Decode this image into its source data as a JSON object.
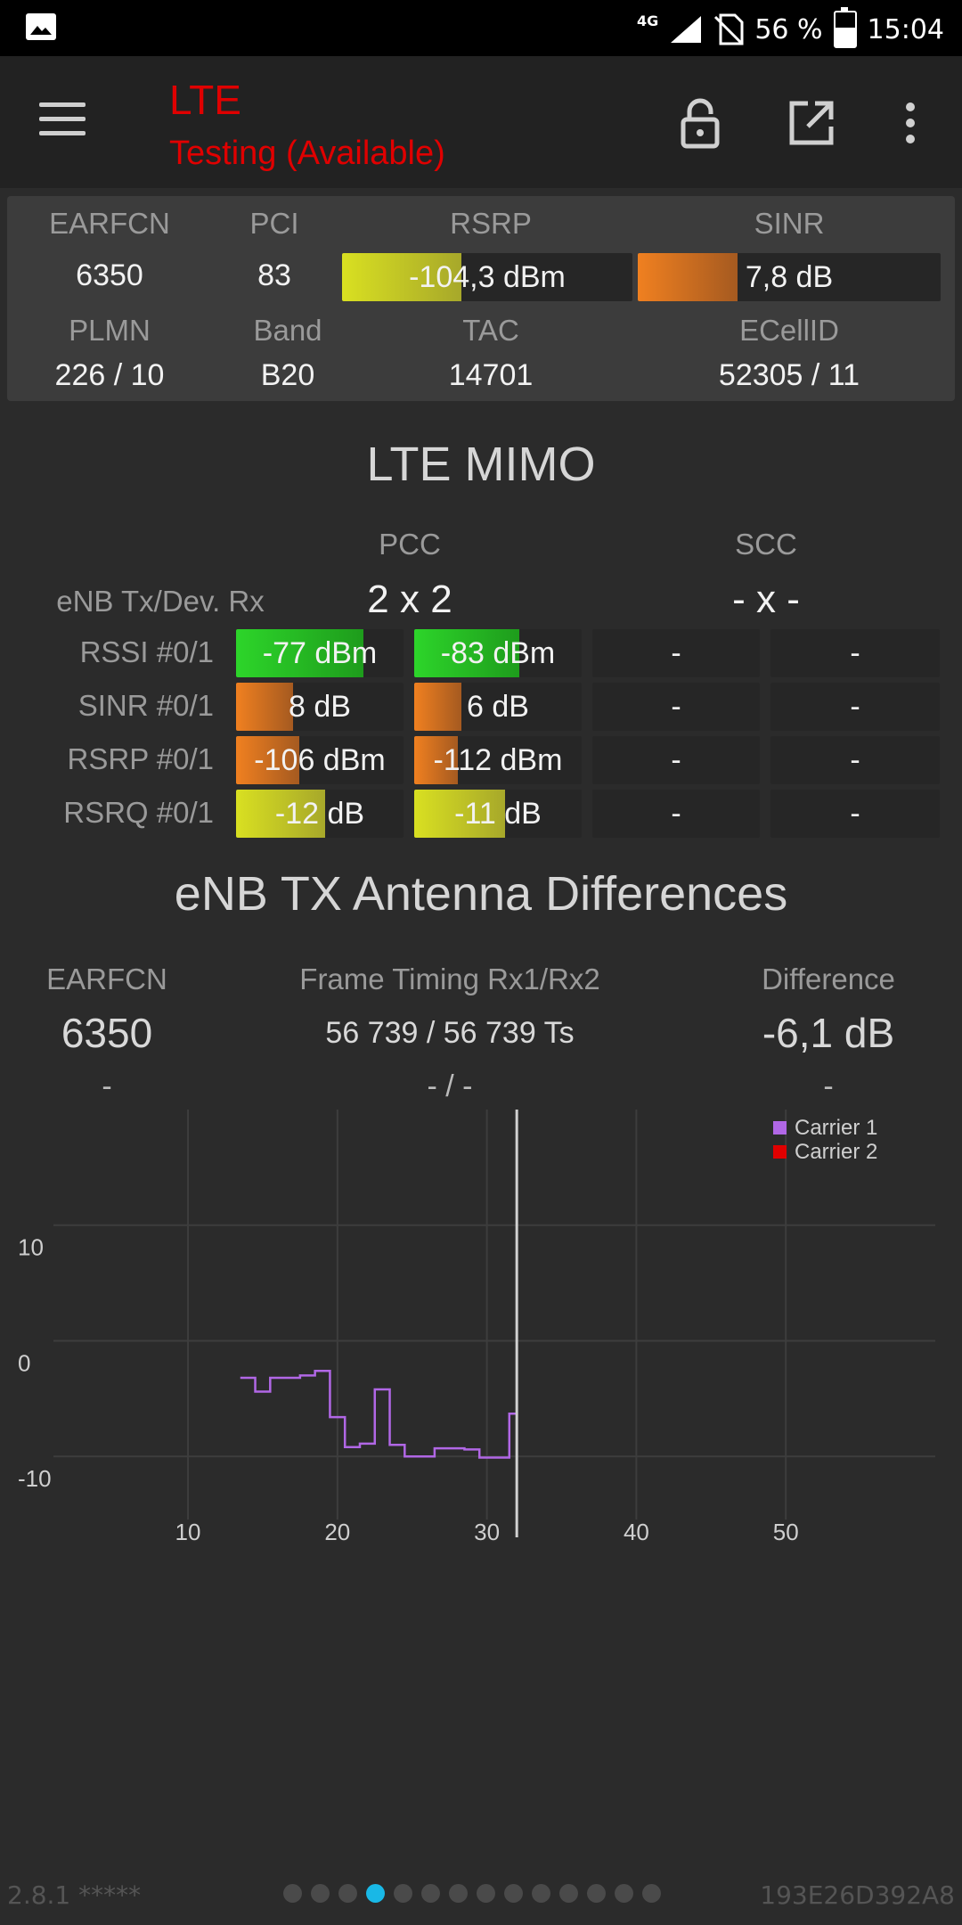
{
  "status_bar": {
    "network": "4G",
    "battery": "56 %",
    "time": "15:04",
    "battery_level": 0.56,
    "icons": [
      "image-icon",
      "signal-icon",
      "no-sim-icon",
      "battery-icon"
    ]
  },
  "app_bar": {
    "title": "LTE",
    "subtitle": "Testing (Available)",
    "icons": [
      "menu-icon",
      "lock-icon",
      "open-external-icon",
      "more-vert-icon"
    ],
    "title_color": "#e00000"
  },
  "info": {
    "labels": {
      "earfcn": "EARFCN",
      "pci": "PCI",
      "rsrp": "RSRP",
      "sinr": "SINR",
      "plmn": "PLMN",
      "band": "Band",
      "tac": "TAC",
      "ecellid": "ECellID"
    },
    "earfcn": "6350",
    "pci": "83",
    "rsrp": {
      "text": "-104,3 dBm",
      "level": 0.41
    },
    "sinr": {
      "text": "7,8 dB",
      "level": 0.33
    },
    "plmn": "226 / 10",
    "band": "B20",
    "tac": "14701",
    "ecellid": "52305 / 11"
  },
  "mimo": {
    "title": "LTE MIMO",
    "pcc_label": "PCC",
    "scc_label": "SCC",
    "enb_label": "eNB Tx/Dev. Rx",
    "pcc_config": "2 x 2",
    "scc_config": "- x -",
    "rows": [
      {
        "label": "RSSI #0/1",
        "cells": [
          {
            "text": "-77 dBm",
            "level": 0.76,
            "color": "green"
          },
          {
            "text": "-83 dBm",
            "level": 0.63,
            "color": "green"
          },
          {
            "text": "-"
          },
          {
            "text": "-"
          }
        ]
      },
      {
        "label": "SINR #0/1",
        "cells": [
          {
            "text": "8 dB",
            "level": 0.34,
            "color": "orange"
          },
          {
            "text": "6 dB",
            "level": 0.28,
            "color": "orange"
          },
          {
            "text": "-"
          },
          {
            "text": "-"
          }
        ]
      },
      {
        "label": "RSRP #0/1",
        "cells": [
          {
            "text": "-106 dBm",
            "level": 0.38,
            "color": "orange"
          },
          {
            "text": "-112 dBm",
            "level": 0.26,
            "color": "orange"
          },
          {
            "text": "-"
          },
          {
            "text": "-"
          }
        ]
      },
      {
        "label": "RSRQ #0/1",
        "cells": [
          {
            "text": "-12 dB",
            "level": 0.53,
            "color": "yellow"
          },
          {
            "text": "-11 dB",
            "level": 0.54,
            "color": "yellow"
          },
          {
            "text": "-"
          },
          {
            "text": "-"
          }
        ]
      }
    ]
  },
  "antenna": {
    "title": "eNB TX Antenna Differences",
    "col_earfcn": "EARFCN",
    "col_timing": "Frame Timing Rx1/Rx2",
    "col_diff": "Difference",
    "earfcn": "6350",
    "timing": "56 739 / 56 739 Ts",
    "diff": "-6,1 dB",
    "earfcn2": "-",
    "timing2": "- / -",
    "diff2": "-"
  },
  "chart_data": {
    "type": "line",
    "title": "",
    "xlabel": "",
    "ylabel": "",
    "xlim": [
      1,
      60
    ],
    "ylim": [
      -17,
      20
    ],
    "xticks": [
      10,
      20,
      30,
      40,
      50
    ],
    "yticks": [
      10,
      0,
      -10
    ],
    "grid": true,
    "legend_position": "top-right",
    "cursor_x": 32,
    "series": [
      {
        "name": "Carrier 1",
        "color": "#b167e6",
        "step": true,
        "x": [
          13.5,
          14.5,
          15.5,
          16.5,
          17.5,
          18.5,
          19.5,
          20.5,
          21.5,
          22.5,
          23.5,
          24.5,
          25.5,
          26.5,
          27.5,
          28.5,
          29.5,
          30.5,
          31.5,
          32
        ],
        "y": [
          -3.2,
          -4.4,
          -3.2,
          -3.2,
          -3,
          -2.6,
          -6.6,
          -9.2,
          -8.9,
          -4.2,
          -9,
          -10,
          -10,
          -9.3,
          -9.3,
          -9.4,
          -10.1,
          -10.1,
          -6.3,
          -6.3
        ]
      },
      {
        "name": "Carrier 2",
        "color": "#e00000",
        "step": true,
        "x": [],
        "y": []
      }
    ]
  },
  "footer": {
    "version": "2.8.1 *****",
    "device_id": "193E26D392A8",
    "page_count": 14,
    "active_page": 4
  }
}
